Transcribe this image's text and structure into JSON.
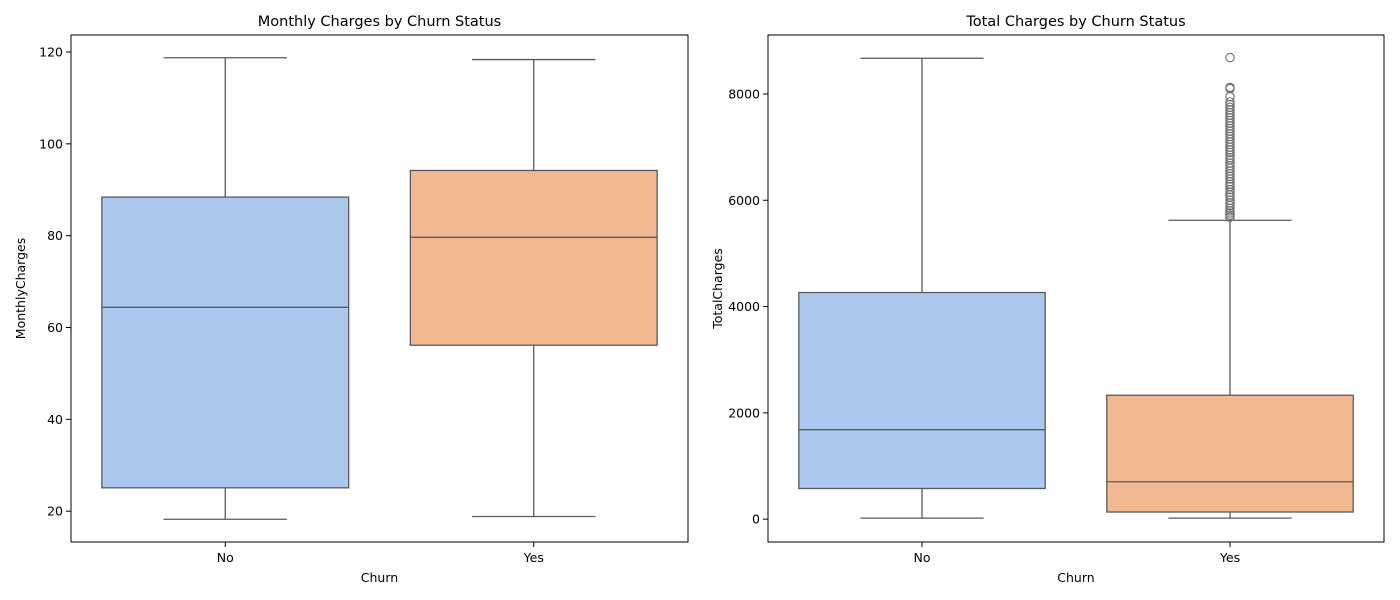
{
  "chart_data": [
    {
      "type": "box",
      "title": "Monthly Charges by Churn Status",
      "xlabel": "Churn",
      "ylabel": "MonthlyCharges",
      "categories": [
        "No",
        "Yes"
      ],
      "ylim": [
        13.3,
        123.7
      ],
      "yticks": [
        20,
        40,
        60,
        80,
        100,
        120
      ],
      "ytick_labels": [
        "20",
        "40",
        "60",
        "80",
        "100",
        "120"
      ],
      "grid": false,
      "legend": "none",
      "boxes": [
        {
          "category": "No",
          "whisker_low": 18.25,
          "q1": 25.1,
          "median": 64.4,
          "q3": 88.4,
          "whisker_high": 118.75,
          "outliers": [],
          "color": "#abc9ee"
        },
        {
          "category": "Yes",
          "whisker_low": 18.85,
          "q1": 56.15,
          "median": 79.65,
          "q3": 94.2,
          "whisker_high": 118.35,
          "outliers": [],
          "color": "#f2b891"
        }
      ]
    },
    {
      "type": "box",
      "title": "Total Charges by Churn Status",
      "xlabel": "Churn",
      "ylabel": "TotalCharges",
      "categories": [
        "No",
        "Yes"
      ],
      "ylim": [
        -430,
        9110
      ],
      "yticks": [
        0,
        2000,
        4000,
        6000,
        8000
      ],
      "ytick_labels": [
        "0",
        "2000",
        "4000",
        "6000",
        "8000"
      ],
      "grid": false,
      "legend": "none",
      "boxes": [
        {
          "category": "No",
          "whisker_low": 18.8,
          "q1": 577,
          "median": 1683,
          "q3": 4264,
          "whisker_high": 8672,
          "outliers": [],
          "color": "#abc9ee"
        },
        {
          "category": "Yes",
          "whisker_low": 18.85,
          "q1": 134,
          "median": 704,
          "q3": 2331,
          "whisker_high": 5624,
          "outliers": [
            5680,
            5720,
            5760,
            5800,
            5850,
            5900,
            5950,
            6000,
            6060,
            6100,
            6150,
            6200,
            6260,
            6300,
            6350,
            6400,
            6450,
            6500,
            6550,
            6600,
            6650,
            6700,
            6760,
            6800,
            6850,
            6900,
            6950,
            7000,
            7050,
            7100,
            7150,
            7200,
            7250,
            7300,
            7350,
            7400,
            7450,
            7500,
            7550,
            7600,
            7650,
            7700,
            7750,
            7800,
            7850,
            7950,
            8100,
            8125,
            8684
          ],
          "color": "#f2b891"
        }
      ]
    }
  ]
}
